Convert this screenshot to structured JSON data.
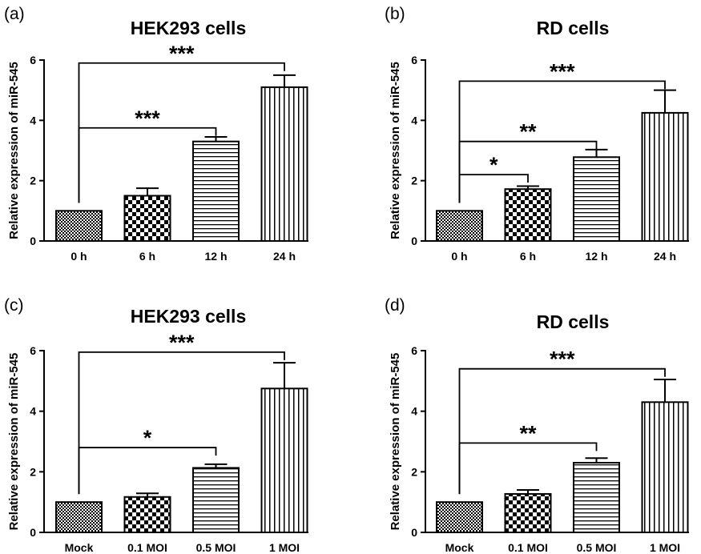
{
  "chart_data": [
    {
      "type": "bar",
      "panel": "(a)",
      "title": "HEK293 cells",
      "ylabel": "Relative expression of miR-545",
      "xlabel": "",
      "ylim": [
        0,
        6
      ],
      "yticks": [
        0,
        2,
        4,
        6
      ],
      "categories": [
        "0 h",
        "6 h",
        "12 h",
        "24 h"
      ],
      "values": [
        1.0,
        1.5,
        3.3,
        5.1
      ],
      "errors": [
        0.0,
        0.25,
        0.15,
        0.4
      ],
      "patterns": [
        "dense-check",
        "checker",
        "hstripe",
        "vstripe"
      ],
      "significance": [
        {
          "from": 0,
          "to": 2,
          "label": "***",
          "y": 3.75
        },
        {
          "from": 0,
          "to": 3,
          "label": "***",
          "y": 5.9
        }
      ]
    },
    {
      "type": "bar",
      "panel": "(b)",
      "title": "RD cells",
      "ylabel": "Relative expression of miR-545",
      "xlabel": "",
      "ylim": [
        0,
        6
      ],
      "yticks": [
        0,
        2,
        4,
        6
      ],
      "categories": [
        "0 h",
        "6 h",
        "12 h",
        "24 h"
      ],
      "values": [
        1.0,
        1.72,
        2.78,
        4.25
      ],
      "errors": [
        0.0,
        0.1,
        0.25,
        0.75
      ],
      "patterns": [
        "dense-check",
        "checker",
        "hstripe",
        "vstripe"
      ],
      "significance": [
        {
          "from": 0,
          "to": 1,
          "label": "*",
          "y": 2.2
        },
        {
          "from": 0,
          "to": 2,
          "label": "**",
          "y": 3.3
        },
        {
          "from": 0,
          "to": 3,
          "label": "***",
          "y": 5.3
        }
      ]
    },
    {
      "type": "bar",
      "panel": "(c)",
      "title": "HEK293 cells",
      "ylabel": "Relative expression of miR-545",
      "xlabel": "",
      "ylim": [
        0,
        6
      ],
      "yticks": [
        0,
        2,
        4,
        6
      ],
      "categories": [
        "Mock",
        "0.1 MOI",
        "0.5 MOI",
        "1 MOI"
      ],
      "values": [
        1.0,
        1.17,
        2.13,
        4.75
      ],
      "errors": [
        0.0,
        0.12,
        0.12,
        0.85
      ],
      "patterns": [
        "dense-check",
        "checker",
        "hstripe",
        "vstripe"
      ],
      "significance": [
        {
          "from": 0,
          "to": 2,
          "label": "*",
          "y": 2.8
        },
        {
          "from": 0,
          "to": 3,
          "label": "***",
          "y": 5.95
        }
      ]
    },
    {
      "type": "bar",
      "panel": "(d)",
      "title": "RD cells",
      "ylabel": "Relative expression of miR-545",
      "xlabel": "",
      "ylim": [
        0,
        6
      ],
      "yticks": [
        0,
        2,
        4,
        6
      ],
      "categories": [
        "Mock",
        "0.1 MOI",
        "0.5 MOI",
        "1 MOI"
      ],
      "values": [
        1.0,
        1.27,
        2.3,
        4.3
      ],
      "errors": [
        0.0,
        0.13,
        0.15,
        0.75
      ],
      "patterns": [
        "dense-check",
        "checker",
        "hstripe",
        "vstripe"
      ],
      "significance": [
        {
          "from": 0,
          "to": 2,
          "label": "**",
          "y": 2.95
        },
        {
          "from": 0,
          "to": 3,
          "label": "***",
          "y": 5.4
        }
      ]
    }
  ]
}
